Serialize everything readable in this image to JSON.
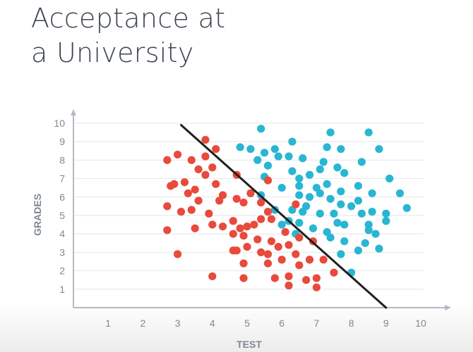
{
  "title_lines": [
    "Acceptance at",
    "a University"
  ],
  "colors": {
    "accepted": "#29b6d3",
    "rejected": "#e84a3c",
    "axis": "#b3bac4",
    "grid": "#e3e6ea",
    "boundary": "#1f1f1f",
    "text": "#7f8793"
  },
  "chart_data": {
    "type": "scatter",
    "xlabel": "TEST",
    "ylabel": "GRADES",
    "xlim": [
      0,
      10
    ],
    "ylim": [
      0,
      10
    ],
    "xticks": [
      1,
      2,
      3,
      4,
      5,
      6,
      7,
      8,
      9,
      10
    ],
    "yticks": [
      1,
      2,
      3,
      4,
      5,
      6,
      7,
      8,
      9,
      10
    ],
    "grid": "horizontal",
    "series": [
      {
        "color": "#29b6d3",
        "points": [
          [
            5.4,
            9.7
          ],
          [
            7.4,
            9.5
          ],
          [
            8.5,
            9.5
          ],
          [
            6.3,
            9.0
          ],
          [
            4.8,
            8.7
          ],
          [
            5.1,
            8.6
          ],
          [
            5.5,
            8.4
          ],
          [
            5.8,
            8.6
          ],
          [
            7.3,
            8.7
          ],
          [
            7.7,
            8.6
          ],
          [
            8.8,
            8.6
          ],
          [
            5.3,
            8.0
          ],
          [
            5.9,
            8.2
          ],
          [
            6.2,
            8.2
          ],
          [
            6.6,
            8.1
          ],
          [
            7.2,
            7.9
          ],
          [
            8.3,
            7.9
          ],
          [
            5.6,
            7.7
          ],
          [
            6.3,
            7.4
          ],
          [
            6.8,
            7.2
          ],
          [
            7.1,
            7.5
          ],
          [
            7.6,
            7.6
          ],
          [
            7.8,
            7.3
          ],
          [
            6.5,
            7.0
          ],
          [
            5.5,
            7.1
          ],
          [
            6.0,
            6.5
          ],
          [
            6.5,
            6.6
          ],
          [
            7.0,
            6.5
          ],
          [
            7.3,
            6.7
          ],
          [
            8.2,
            6.6
          ],
          [
            9.1,
            7.0
          ],
          [
            5.4,
            6.1
          ],
          [
            6.5,
            6.1
          ],
          [
            6.8,
            6.0
          ],
          [
            7.1,
            6.2
          ],
          [
            7.4,
            5.9
          ],
          [
            7.7,
            6.3
          ],
          [
            8.6,
            6.2
          ],
          [
            9.4,
            6.2
          ],
          [
            8.2,
            5.8
          ],
          [
            5.8,
            5.3
          ],
          [
            6.3,
            5.3
          ],
          [
            6.6,
            5.2
          ],
          [
            6.7,
            5.5
          ],
          [
            7.1,
            5.1
          ],
          [
            7.5,
            5.1
          ],
          [
            7.7,
            5.6
          ],
          [
            8.0,
            5.5
          ],
          [
            8.3,
            5.1
          ],
          [
            8.6,
            5.2
          ],
          [
            9.0,
            5.1
          ],
          [
            9.6,
            5.4
          ],
          [
            9.0,
            4.7
          ],
          [
            8.5,
            4.5
          ],
          [
            8.7,
            4.0
          ],
          [
            6.0,
            4.5
          ],
          [
            6.2,
            4.7
          ],
          [
            6.5,
            4.6
          ],
          [
            6.9,
            4.3
          ],
          [
            7.3,
            4.1
          ],
          [
            7.6,
            4.6
          ],
          [
            7.8,
            4.5
          ],
          [
            6.4,
            4.0
          ],
          [
            7.4,
            3.8
          ],
          [
            7.8,
            3.6
          ],
          [
            8.4,
            3.5
          ],
          [
            8.5,
            4.2
          ],
          [
            8.8,
            3.2
          ],
          [
            8.2,
            3.1
          ],
          [
            8.0,
            1.9
          ],
          [
            7.7,
            2.9
          ]
        ]
      },
      {
        "color": "#e84a3c",
        "points": [
          [
            3.8,
            9.1
          ],
          [
            4.1,
            8.6
          ],
          [
            3.0,
            8.3
          ],
          [
            2.7,
            8.0
          ],
          [
            3.4,
            8.0
          ],
          [
            3.8,
            8.2
          ],
          [
            3.6,
            7.5
          ],
          [
            4.0,
            7.6
          ],
          [
            2.9,
            6.7
          ],
          [
            3.2,
            6.8
          ],
          [
            3.8,
            7.2
          ],
          [
            4.7,
            7.2
          ],
          [
            2.8,
            6.6
          ],
          [
            3.3,
            6.2
          ],
          [
            3.5,
            6.4
          ],
          [
            4.1,
            6.7
          ],
          [
            4.3,
            6.1
          ],
          [
            5.1,
            6.2
          ],
          [
            5.6,
            6.9
          ],
          [
            2.7,
            5.5
          ],
          [
            3.1,
            5.2
          ],
          [
            3.4,
            5.3
          ],
          [
            3.6,
            5.8
          ],
          [
            3.9,
            5.1
          ],
          [
            4.2,
            5.8
          ],
          [
            4.7,
            5.9
          ],
          [
            4.9,
            5.7
          ],
          [
            5.4,
            5.7
          ],
          [
            5.6,
            5.2
          ],
          [
            6.4,
            5.6
          ],
          [
            2.7,
            4.2
          ],
          [
            3.5,
            4.3
          ],
          [
            4.0,
            4.5
          ],
          [
            4.3,
            4.4
          ],
          [
            4.6,
            4.7
          ],
          [
            4.8,
            4.3
          ],
          [
            5.0,
            4.4
          ],
          [
            5.2,
            4.5
          ],
          [
            5.4,
            4.8
          ],
          [
            5.7,
            4.8
          ],
          [
            6.1,
            4.1
          ],
          [
            4.6,
            4.0
          ],
          [
            4.9,
            3.9
          ],
          [
            5.3,
            3.7
          ],
          [
            5.7,
            3.6
          ],
          [
            6.2,
            3.4
          ],
          [
            6.5,
            3.8
          ],
          [
            6.9,
            3.6
          ],
          [
            4.6,
            3.1
          ],
          [
            4.7,
            3.1
          ],
          [
            5.0,
            3.3
          ],
          [
            5.4,
            3.0
          ],
          [
            5.6,
            2.9
          ],
          [
            5.9,
            3.3
          ],
          [
            6.4,
            2.9
          ],
          [
            3.0,
            2.9
          ],
          [
            4.9,
            2.4
          ],
          [
            5.6,
            2.4
          ],
          [
            6.0,
            2.6
          ],
          [
            6.5,
            2.3
          ],
          [
            6.8,
            2.6
          ],
          [
            7.2,
            2.6
          ],
          [
            4.0,
            1.7
          ],
          [
            4.9,
            1.6
          ],
          [
            5.8,
            1.6
          ],
          [
            6.2,
            1.7
          ],
          [
            6.7,
            1.5
          ],
          [
            7.0,
            1.6
          ],
          [
            7.5,
            1.9
          ],
          [
            6.2,
            1.2
          ],
          [
            7.0,
            1.1
          ]
        ]
      }
    ],
    "boundary_line": [
      [
        3.1,
        9.9
      ],
      [
        9.0,
        0.0
      ]
    ]
  }
}
